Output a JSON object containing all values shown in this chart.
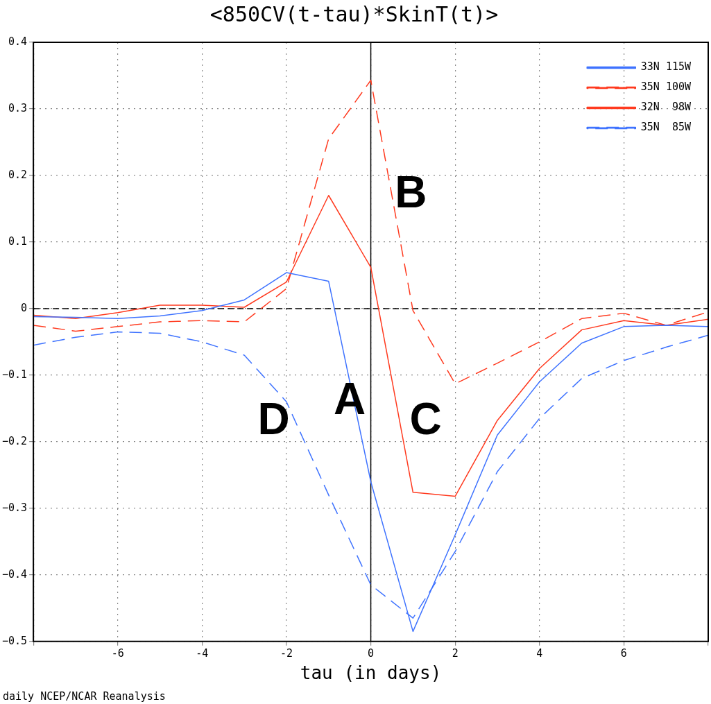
{
  "chart_data": {
    "type": "line",
    "title": "<850CV(t-tau)*SkinT(t)>",
    "xlabel": "tau (in days)",
    "x": [
      -8,
      -7,
      -6,
      -5,
      -4,
      -3,
      -2,
      -1,
      0,
      1,
      2,
      3,
      4,
      5,
      6,
      7,
      8
    ],
    "series": [
      {
        "name": "33N 115W",
        "color": "#3f73ff",
        "line_style": "solid",
        "values": [
          -0.012,
          -0.013,
          -0.015,
          -0.011,
          -0.003,
          0.013,
          0.054,
          0.041,
          -0.26,
          -0.485,
          -0.34,
          -0.19,
          -0.11,
          -0.052,
          -0.027,
          -0.025,
          -0.027
        ]
      },
      {
        "name": "35N 100W",
        "color": "#ff3a1f",
        "line_style": "dashed",
        "values": [
          -0.025,
          -0.034,
          -0.027,
          -0.02,
          -0.018,
          -0.02,
          0.03,
          0.255,
          0.343,
          -0.003,
          -0.113,
          -0.082,
          -0.05,
          -0.015,
          -0.007,
          -0.025,
          -0.005
        ]
      },
      {
        "name": "32N  98W",
        "color": "#ff3a1f",
        "line_style": "solid",
        "values": [
          -0.01,
          -0.015,
          -0.006,
          0.005,
          0.005,
          0.002,
          0.04,
          0.17,
          0.062,
          -0.276,
          -0.282,
          -0.168,
          -0.09,
          -0.032,
          -0.018,
          -0.025,
          -0.016
        ]
      },
      {
        "name": "35N  85W",
        "color": "#3f73ff",
        "line_style": "dashed",
        "values": [
          -0.055,
          -0.043,
          -0.035,
          -0.037,
          -0.05,
          -0.07,
          -0.14,
          -0.28,
          -0.415,
          -0.465,
          -0.365,
          -0.245,
          -0.165,
          -0.105,
          -0.078,
          -0.058,
          -0.04
        ]
      }
    ],
    "xlim": [
      -8,
      8
    ],
    "xticks": [
      {
        "value": -8,
        "label": null
      },
      -6,
      -4,
      -2,
      0,
      2,
      4,
      6,
      {
        "value": 8,
        "label": null
      }
    ],
    "ylim": [
      -0.5,
      0.4
    ],
    "yticks": [
      -0.5,
      -0.4,
      -0.3,
      -0.2,
      -0.1,
      0,
      0.1,
      0.2,
      0.3,
      0.4
    ],
    "grid": true,
    "legend": "top right",
    "marker": "none",
    "ref_lines": [
      {
        "axis": "y",
        "value": 0,
        "color": "#000000",
        "line_style": "dashed"
      },
      {
        "axis": "x",
        "value": 0,
        "color": "#000000",
        "line_style": "solid"
      }
    ],
    "annotations": [
      "A",
      "B",
      "C",
      "D",
      "daily NCEP/NCAR Reanalysis"
    ]
  }
}
